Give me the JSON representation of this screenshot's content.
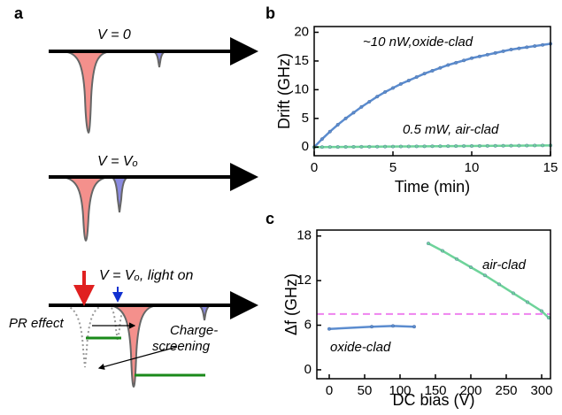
{
  "panel_labels": [
    "a",
    "b",
    "c"
  ],
  "diagram": {
    "states": [
      "V = 0",
      "V = Vₒ",
      "V = Vₒ, light on"
    ],
    "pr_effect": "PR effect",
    "charge_screening": [
      "Charge-",
      "screening"
    ]
  },
  "chart_data": [
    {
      "type": "line",
      "xlabel": "Time (min)",
      "ylabel": "Drift (GHz)",
      "x": [
        0,
        0.5,
        1,
        1.5,
        2,
        2.5,
        3,
        3.5,
        4,
        4.5,
        5,
        5.5,
        6,
        6.5,
        7,
        7.5,
        8,
        8.5,
        9,
        9.5,
        10,
        10.5,
        11,
        11.5,
        12,
        12.5,
        13,
        13.5,
        14,
        14.5,
        15
      ],
      "xlim": [
        0,
        15
      ],
      "xticks": [
        0,
        5,
        10,
        15
      ],
      "ylim": [
        -1.5,
        21
      ],
      "yticks": [
        0,
        5,
        10,
        15,
        20
      ],
      "series": [
        {
          "name": "~10 nW,oxide-clad",
          "color": "#5b8ccf",
          "values": [
            0,
            1.4,
            2.7,
            3.9,
            5.0,
            6.0,
            7.0,
            7.9,
            8.8,
            9.6,
            10.3,
            11.0,
            11.6,
            12.2,
            12.8,
            13.3,
            13.8,
            14.3,
            14.7,
            15.1,
            15.5,
            15.8,
            16.1,
            16.4,
            16.7,
            17.0,
            17.2,
            17.4,
            17.6,
            17.8,
            18.0
          ]
        },
        {
          "name": "0.5 mW, air-clad",
          "color": "#6ed39a",
          "values": [
            0,
            0.01,
            0.02,
            0.03,
            0.04,
            0.05,
            0.06,
            0.07,
            0.08,
            0.09,
            0.1,
            0.11,
            0.12,
            0.13,
            0.14,
            0.15,
            0.16,
            0.17,
            0.18,
            0.19,
            0.2,
            0.21,
            0.22,
            0.23,
            0.24,
            0.25,
            0.26,
            0.27,
            0.28,
            0.29,
            0.3
          ]
        }
      ]
    },
    {
      "type": "line",
      "xlabel": "DC bias (V)",
      "ylabel": "Δf (GHz)",
      "xlim": [
        -17.5,
        312.5
      ],
      "xticks": [
        0,
        50,
        100,
        150,
        200,
        250,
        300
      ],
      "ylim": [
        -1.2,
        18.8
      ],
      "yticks": [
        0,
        6,
        12,
        18
      ],
      "reference_line": {
        "y": 7.5,
        "color": "#ee82ee"
      },
      "series": [
        {
          "name": "oxide-clad",
          "color": "#5b8ccf",
          "x": [
            0,
            60,
            90,
            120
          ],
          "values": [
            5.5,
            5.8,
            5.9,
            5.8
          ]
        },
        {
          "name": "air-clad",
          "color": "#6ed39a",
          "x": [
            140,
            160,
            180,
            200,
            220,
            240,
            260,
            280,
            300,
            310
          ],
          "values": [
            17,
            16,
            14.9,
            13.8,
            12.7,
            11.5,
            10.3,
            9.1,
            7.9,
            7
          ]
        }
      ]
    }
  ]
}
